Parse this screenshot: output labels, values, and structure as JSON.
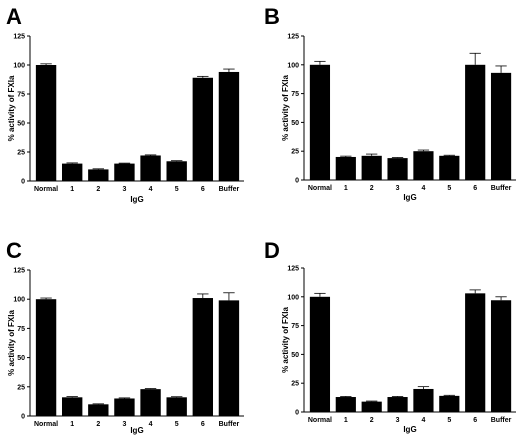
{
  "chart_data": [
    {
      "panel": "A",
      "type": "bar",
      "categories": [
        "Normal",
        "1",
        "2",
        "3",
        "4",
        "5",
        "6",
        "Buffer"
      ],
      "values": [
        100,
        15,
        10,
        15,
        22,
        17,
        89,
        94
      ],
      "errors": [
        1,
        0.6,
        0.5,
        0.4,
        0.5,
        0.5,
        1.2,
        2.5
      ],
      "xlabel": "IgG",
      "ylabel": "% activity of FXIa",
      "ylim": [
        0,
        125
      ],
      "yticks": [
        "0",
        "25",
        "50",
        "75",
        "100",
        "125"
      ],
      "grid": false
    },
    {
      "panel": "B",
      "type": "bar",
      "categories": [
        "Normal",
        "1",
        "2",
        "3",
        "4",
        "5",
        "6",
        "Buffer"
      ],
      "values": [
        100,
        20,
        21,
        19,
        25,
        21,
        100,
        93
      ],
      "errors": [
        3,
        0.7,
        1.5,
        0.5,
        1,
        0.5,
        10,
        6
      ],
      "xlabel": "IgG",
      "ylabel": "% activity of FXIa",
      "ylim": [
        0,
        125
      ],
      "yticks": [
        "0",
        "25",
        "50",
        "75",
        "100",
        "125"
      ],
      "grid": false
    },
    {
      "panel": "C",
      "type": "bar",
      "categories": [
        "Normal",
        "1",
        "2",
        "3",
        "4",
        "5",
        "6",
        "Buffer"
      ],
      "values": [
        100,
        16,
        10,
        15,
        23,
        16,
        101,
        99
      ],
      "errors": [
        1,
        0.6,
        0.4,
        0.5,
        0.5,
        0.5,
        3.5,
        6.5
      ],
      "xlabel": "IgG",
      "ylabel": "% activity of FXIa",
      "ylim": [
        0,
        125
      ],
      "yticks": [
        "0",
        "25",
        "50",
        "75",
        "100",
        "125"
      ],
      "grid": false
    },
    {
      "panel": "D",
      "type": "bar",
      "categories": [
        "Normal",
        "1",
        "2",
        "3",
        "4",
        "5",
        "6",
        "Buffer"
      ],
      "values": [
        100,
        13,
        9,
        13,
        20,
        14,
        103,
        97
      ],
      "errors": [
        3,
        0.5,
        0.5,
        0.5,
        2,
        0.5,
        3,
        3
      ],
      "xlabel": "IgG",
      "ylabel": "% activity of FXIa",
      "ylim": [
        0,
        125
      ],
      "yticks": [
        "0",
        "25",
        "50",
        "75",
        "100",
        "125"
      ],
      "grid": false
    }
  ]
}
